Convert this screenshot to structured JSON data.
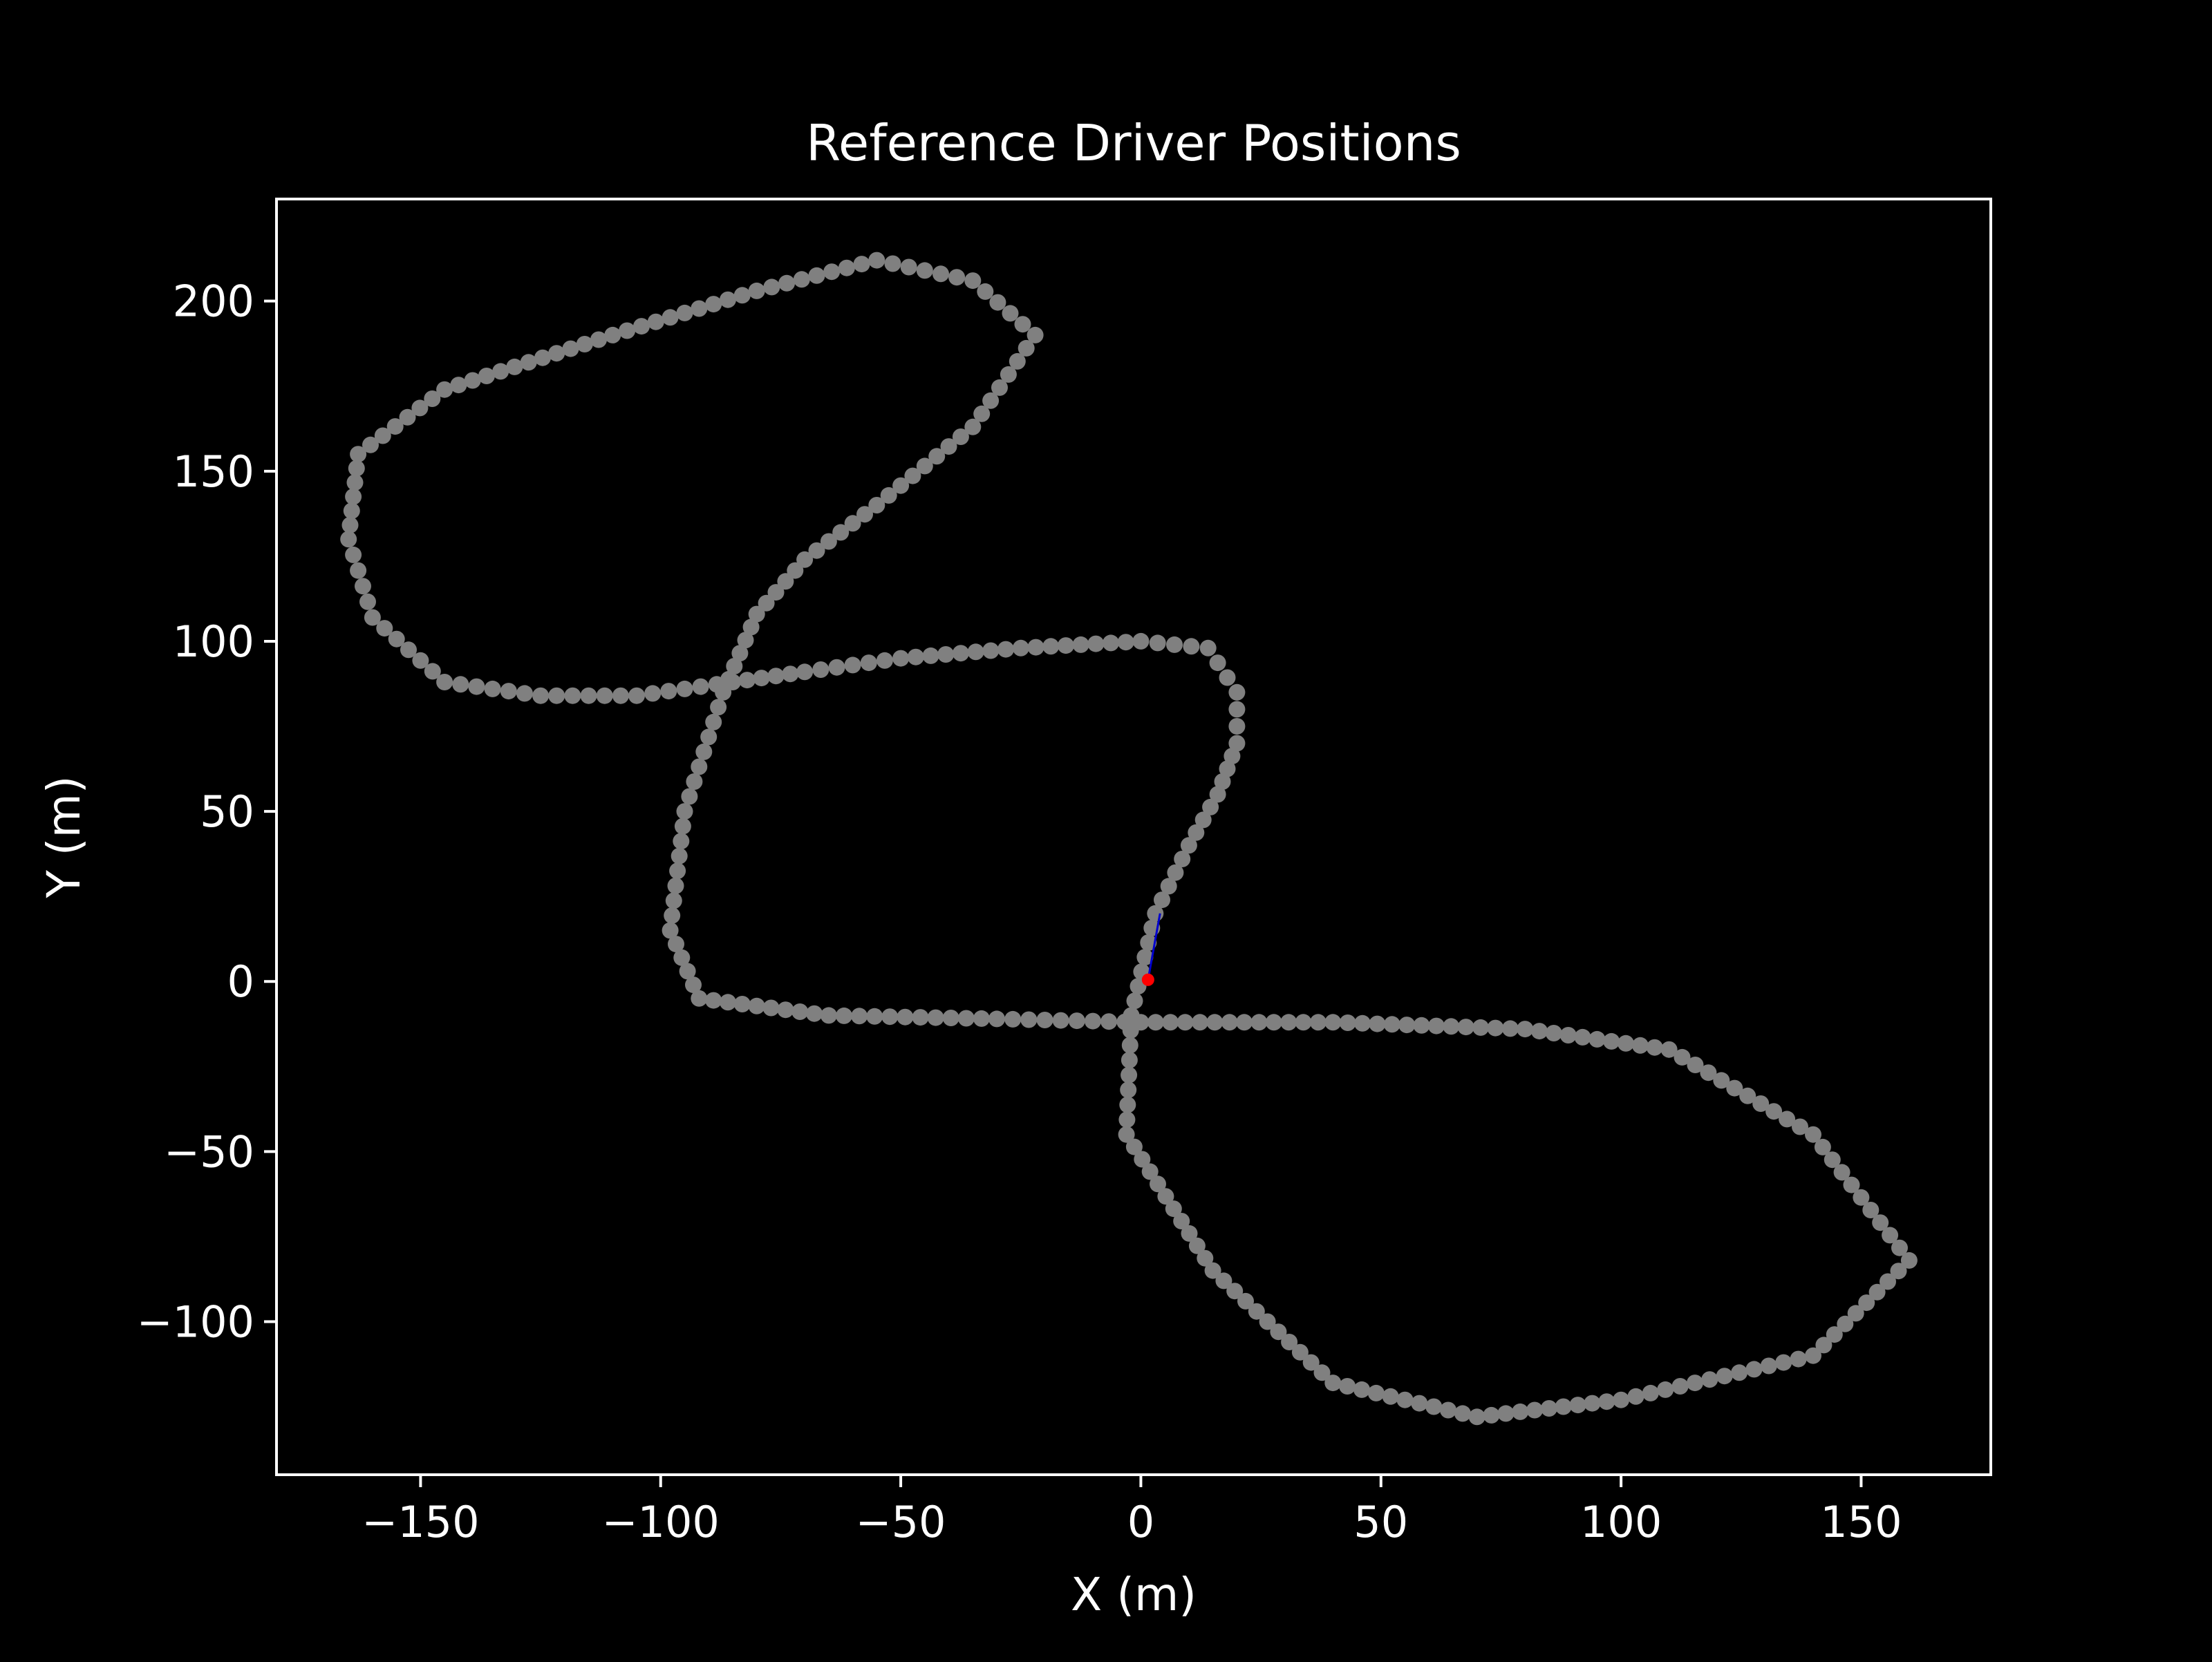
{
  "chart_data": {
    "type": "scatter",
    "title": "Reference Driver Positions",
    "xlabel": "X (m)",
    "ylabel": "Y (m)",
    "xlim": [
      -180,
      177
    ],
    "ylim": [
      -145,
      230
    ],
    "xticks": [
      -150,
      -100,
      -50,
      0,
      50,
      100,
      150
    ],
    "yticks": [
      -100,
      -50,
      0,
      50,
      100,
      150,
      200
    ],
    "xtick_labels": [
      "−150",
      "−100",
      "−50",
      "0",
      "50",
      "100",
      "150"
    ],
    "ytick_labels": [
      "−100",
      "−50",
      "0",
      "50",
      "100",
      "150",
      "200"
    ],
    "grid": false,
    "colors": {
      "background": "#000000",
      "axes": "#ffffff",
      "track_points": "#808080",
      "reference_point": "#ff0000",
      "heading_line": "#0000cc"
    },
    "track_outline": [
      [
        3,
        20
      ],
      [
        10,
        40
      ],
      [
        16,
        55
      ],
      [
        20,
        70
      ],
      [
        20,
        85
      ],
      [
        14,
        98
      ],
      [
        0,
        100
      ],
      [
        -25,
        98
      ],
      [
        -50,
        95
      ],
      [
        -70,
        91
      ],
      [
        -85,
        88
      ],
      [
        -105,
        84
      ],
      [
        -125,
        84
      ],
      [
        -145,
        88
      ],
      [
        -160,
        107
      ],
      [
        -165,
        130
      ],
      [
        -163,
        155
      ],
      [
        -145,
        174
      ],
      [
        -110,
        190
      ],
      [
        -80,
        203
      ],
      [
        -55,
        212
      ],
      [
        -35,
        206
      ],
      [
        -22,
        190
      ],
      [
        -35,
        163
      ],
      [
        -55,
        140
      ],
      [
        -70,
        124
      ],
      [
        -80,
        108
      ],
      [
        -87,
        85
      ],
      [
        -95,
        50
      ],
      [
        -98,
        15
      ],
      [
        -92,
        -5
      ],
      [
        -65,
        -10
      ],
      [
        -30,
        -11
      ],
      [
        0,
        -12
      ],
      [
        40,
        -12
      ],
      [
        80,
        -14
      ],
      [
        110,
        -20
      ],
      [
        140,
        -45
      ],
      [
        160,
        -82
      ],
      [
        140,
        -110
      ],
      [
        100,
        -123
      ],
      [
        70,
        -128
      ],
      [
        40,
        -118
      ],
      [
        15,
        -85
      ],
      [
        -3,
        -45
      ],
      [
        -2,
        -10
      ],
      [
        3,
        20
      ]
    ],
    "reference_point": {
      "x": 1.5,
      "y": 0.5
    },
    "heading_line": [
      [
        1.5,
        0.5
      ],
      [
        4,
        20
      ]
    ]
  }
}
